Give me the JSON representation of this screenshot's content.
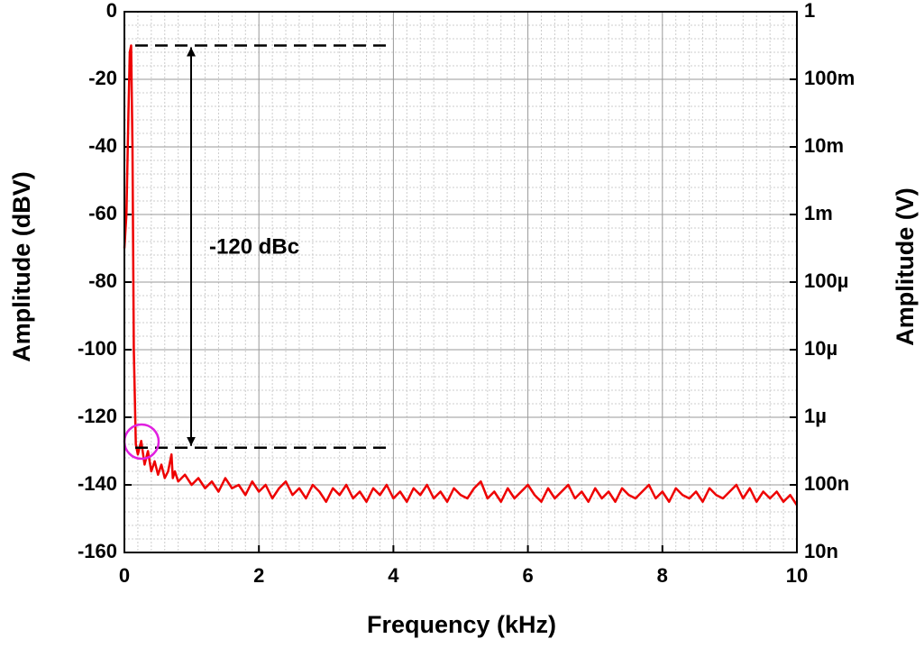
{
  "chart_data": {
    "type": "line",
    "xlabel": "Frequency (kHz)",
    "ylabel": "Amplitude (dBV)",
    "y2label": "Amplitude (V)",
    "x": [
      0,
      0.03,
      0.06,
      0.08,
      0.1,
      0.12,
      0.14,
      0.17,
      0.2,
      0.25,
      0.3,
      0.35,
      0.4,
      0.45,
      0.5,
      0.55,
      0.6,
      0.65,
      0.7,
      0.72,
      0.75,
      0.8,
      0.9,
      1.0,
      1.1,
      1.2,
      1.3,
      1.4,
      1.5,
      1.6,
      1.7,
      1.8,
      1.9,
      2.0,
      2.1,
      2.2,
      2.3,
      2.4,
      2.5,
      2.6,
      2.7,
      2.8,
      2.9,
      3.0,
      3.1,
      3.2,
      3.3,
      3.4,
      3.5,
      3.6,
      3.7,
      3.8,
      3.9,
      4.0,
      4.1,
      4.2,
      4.3,
      4.4,
      4.5,
      4.6,
      4.7,
      4.8,
      4.9,
      5.0,
      5.1,
      5.2,
      5.3,
      5.4,
      5.5,
      5.6,
      5.7,
      5.8,
      5.9,
      6.0,
      6.1,
      6.2,
      6.3,
      6.4,
      6.5,
      6.6,
      6.7,
      6.8,
      6.9,
      7.0,
      7.1,
      7.2,
      7.3,
      7.4,
      7.5,
      7.6,
      7.7,
      7.8,
      7.9,
      8.0,
      8.1,
      8.2,
      8.3,
      8.4,
      8.5,
      8.6,
      8.7,
      8.8,
      8.9,
      9.0,
      9.1,
      9.2,
      9.3,
      9.4,
      9.5,
      9.6,
      9.7,
      9.8,
      9.9,
      10.0
    ],
    "series": [
      {
        "color": "#ee0000",
        "values": [
          -70,
          -60,
          -30,
          -12,
          -10,
          -40,
          -100,
          -128,
          -131,
          -127,
          -134,
          -130,
          -136,
          -133,
          -137,
          -134,
          -138,
          -136,
          -131,
          -138,
          -136,
          -139,
          -137,
          -140,
          -138,
          -141,
          -139,
          -142,
          -138,
          -141,
          -140,
          -143,
          -139,
          -142,
          -140,
          -144,
          -141,
          -139,
          -143,
          -141,
          -144,
          -140,
          -142,
          -145,
          -141,
          -143,
          -140,
          -144,
          -142,
          -145,
          -141,
          -143,
          -140,
          -144,
          -142,
          -145,
          -141,
          -143,
          -140,
          -144,
          -142,
          -145,
          -141,
          -143,
          -144,
          -141,
          -139,
          -144,
          -142,
          -145,
          -141,
          -144,
          -142,
          -140,
          -143,
          -145,
          -141,
          -144,
          -142,
          -140,
          -144,
          -142,
          -145,
          -141,
          -144,
          -142,
          -145,
          -141,
          -143,
          -144,
          -142,
          -140,
          -144,
          -142,
          -145,
          -141,
          -143,
          -144,
          -142,
          -145,
          -141,
          -143,
          -144,
          -142,
          -140,
          -144,
          -141,
          -145,
          -142,
          -144,
          -142,
          -145,
          -143,
          -146
        ]
      }
    ],
    "xlim": [
      0,
      10
    ],
    "xticks": [
      0,
      2,
      4,
      6,
      8,
      10
    ],
    "ylim": [
      -160,
      0
    ],
    "yticks": [
      0,
      -20,
      -40,
      -60,
      -80,
      -100,
      -120,
      -140,
      -160
    ],
    "y2scale": "log",
    "y2lim": [
      1e-08,
      1
    ],
    "y2ticks": [
      1,
      {
        "value": 0.1,
        "label": "100m"
      },
      {
        "value": 0.01,
        "label": "10m"
      },
      {
        "value": 0.001,
        "label": "1m"
      },
      {
        "value": 0.0001,
        "label": "100µ"
      },
      {
        "value": 1e-05,
        "label": "10µ"
      },
      {
        "value": 1e-06,
        "label": "1µ"
      },
      {
        "value": 1e-07,
        "label": "100n"
      },
      {
        "value": 1e-08,
        "label": "10n"
      }
    ],
    "grid": true,
    "reference_lines": [
      -10,
      -129
    ],
    "annotation": "-120 dBc"
  }
}
